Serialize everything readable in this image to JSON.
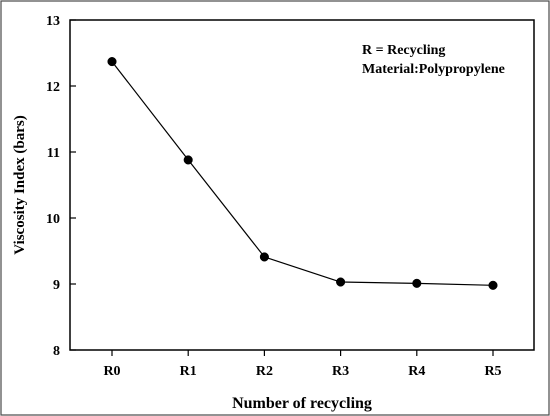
{
  "chart_data": {
    "type": "line",
    "categories": [
      "R0",
      "R1",
      "R2",
      "R3",
      "R4",
      "R5"
    ],
    "series": [
      {
        "values": [
          12.37,
          10.88,
          9.41,
          9.03,
          9.01,
          8.98
        ]
      }
    ],
    "xlabel": "Number of recycling",
    "ylabel": "Viscosity Index (bars)",
    "ylim": [
      8,
      13
    ],
    "yticks": [
      8,
      9,
      10,
      11,
      12,
      13
    ],
    "grid": false,
    "legend_placement": "top-right",
    "annotation_lines": [
      "R = Recycling",
      "Material:Polypropylene"
    ],
    "colors": {
      "line": "#000000",
      "marker": "#000000",
      "frame": "#000000",
      "border": "#4a4a4a"
    }
  }
}
